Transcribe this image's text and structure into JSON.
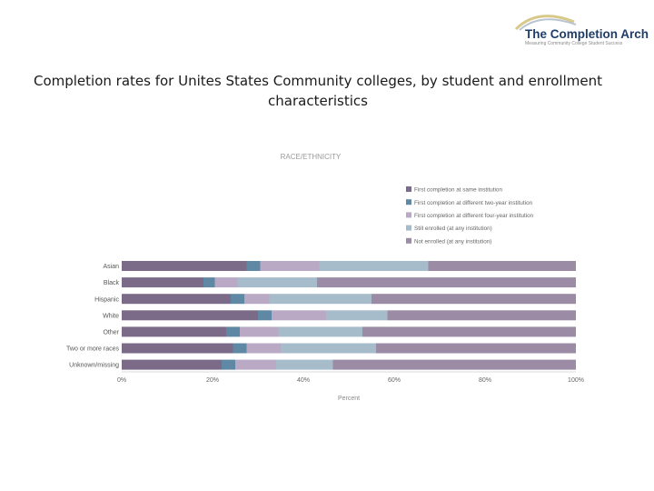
{
  "header": {
    "logo_title": "The Completion Arch",
    "logo_subtitle": "Measuring Community College Student Success",
    "slide_title": "Completion rates for Unites States Community colleges, by student and enrollment characteristics"
  },
  "chart_data": {
    "type": "bar",
    "orientation": "horizontal",
    "stacked": true,
    "title": "RACE/ETHNICITY",
    "xlabel": "Percent",
    "ylabel": "",
    "xlim": [
      0,
      100
    ],
    "x_ticks": [
      "0%",
      "20%",
      "40%",
      "60%",
      "80%",
      "100%"
    ],
    "x_tick_values": [
      0,
      20,
      40,
      60,
      80,
      100
    ],
    "legend_position": "top-right",
    "grid": false,
    "categories": [
      "Asian",
      "Black",
      "Hispanic",
      "White",
      "Other",
      "Two or more races",
      "Unknown/missing"
    ],
    "series": [
      {
        "name": "First completion at same institution",
        "color": "#7b6b88",
        "values": [
          27.5,
          18,
          24,
          30,
          23,
          24.5,
          22
        ]
      },
      {
        "name": "First completion at different two-year institution",
        "color": "#5f88a4",
        "values": [
          3,
          2.5,
          3,
          3,
          3,
          3,
          3
        ]
      },
      {
        "name": "First completion at different four-year institution",
        "color": "#b9a9c4",
        "values": [
          13,
          5,
          5.5,
          12,
          8.5,
          7.5,
          9
        ]
      },
      {
        "name": "Still enrolled (at any institution)",
        "color": "#a7bcca",
        "values": [
          24,
          17.5,
          22.5,
          13.5,
          18.5,
          21,
          12.5
        ]
      },
      {
        "name": "Not enrolled (at any institution)",
        "color": "#9b8ba4",
        "values": [
          32.5,
          57,
          45,
          41.5,
          47,
          44,
          53.5
        ]
      }
    ]
  }
}
